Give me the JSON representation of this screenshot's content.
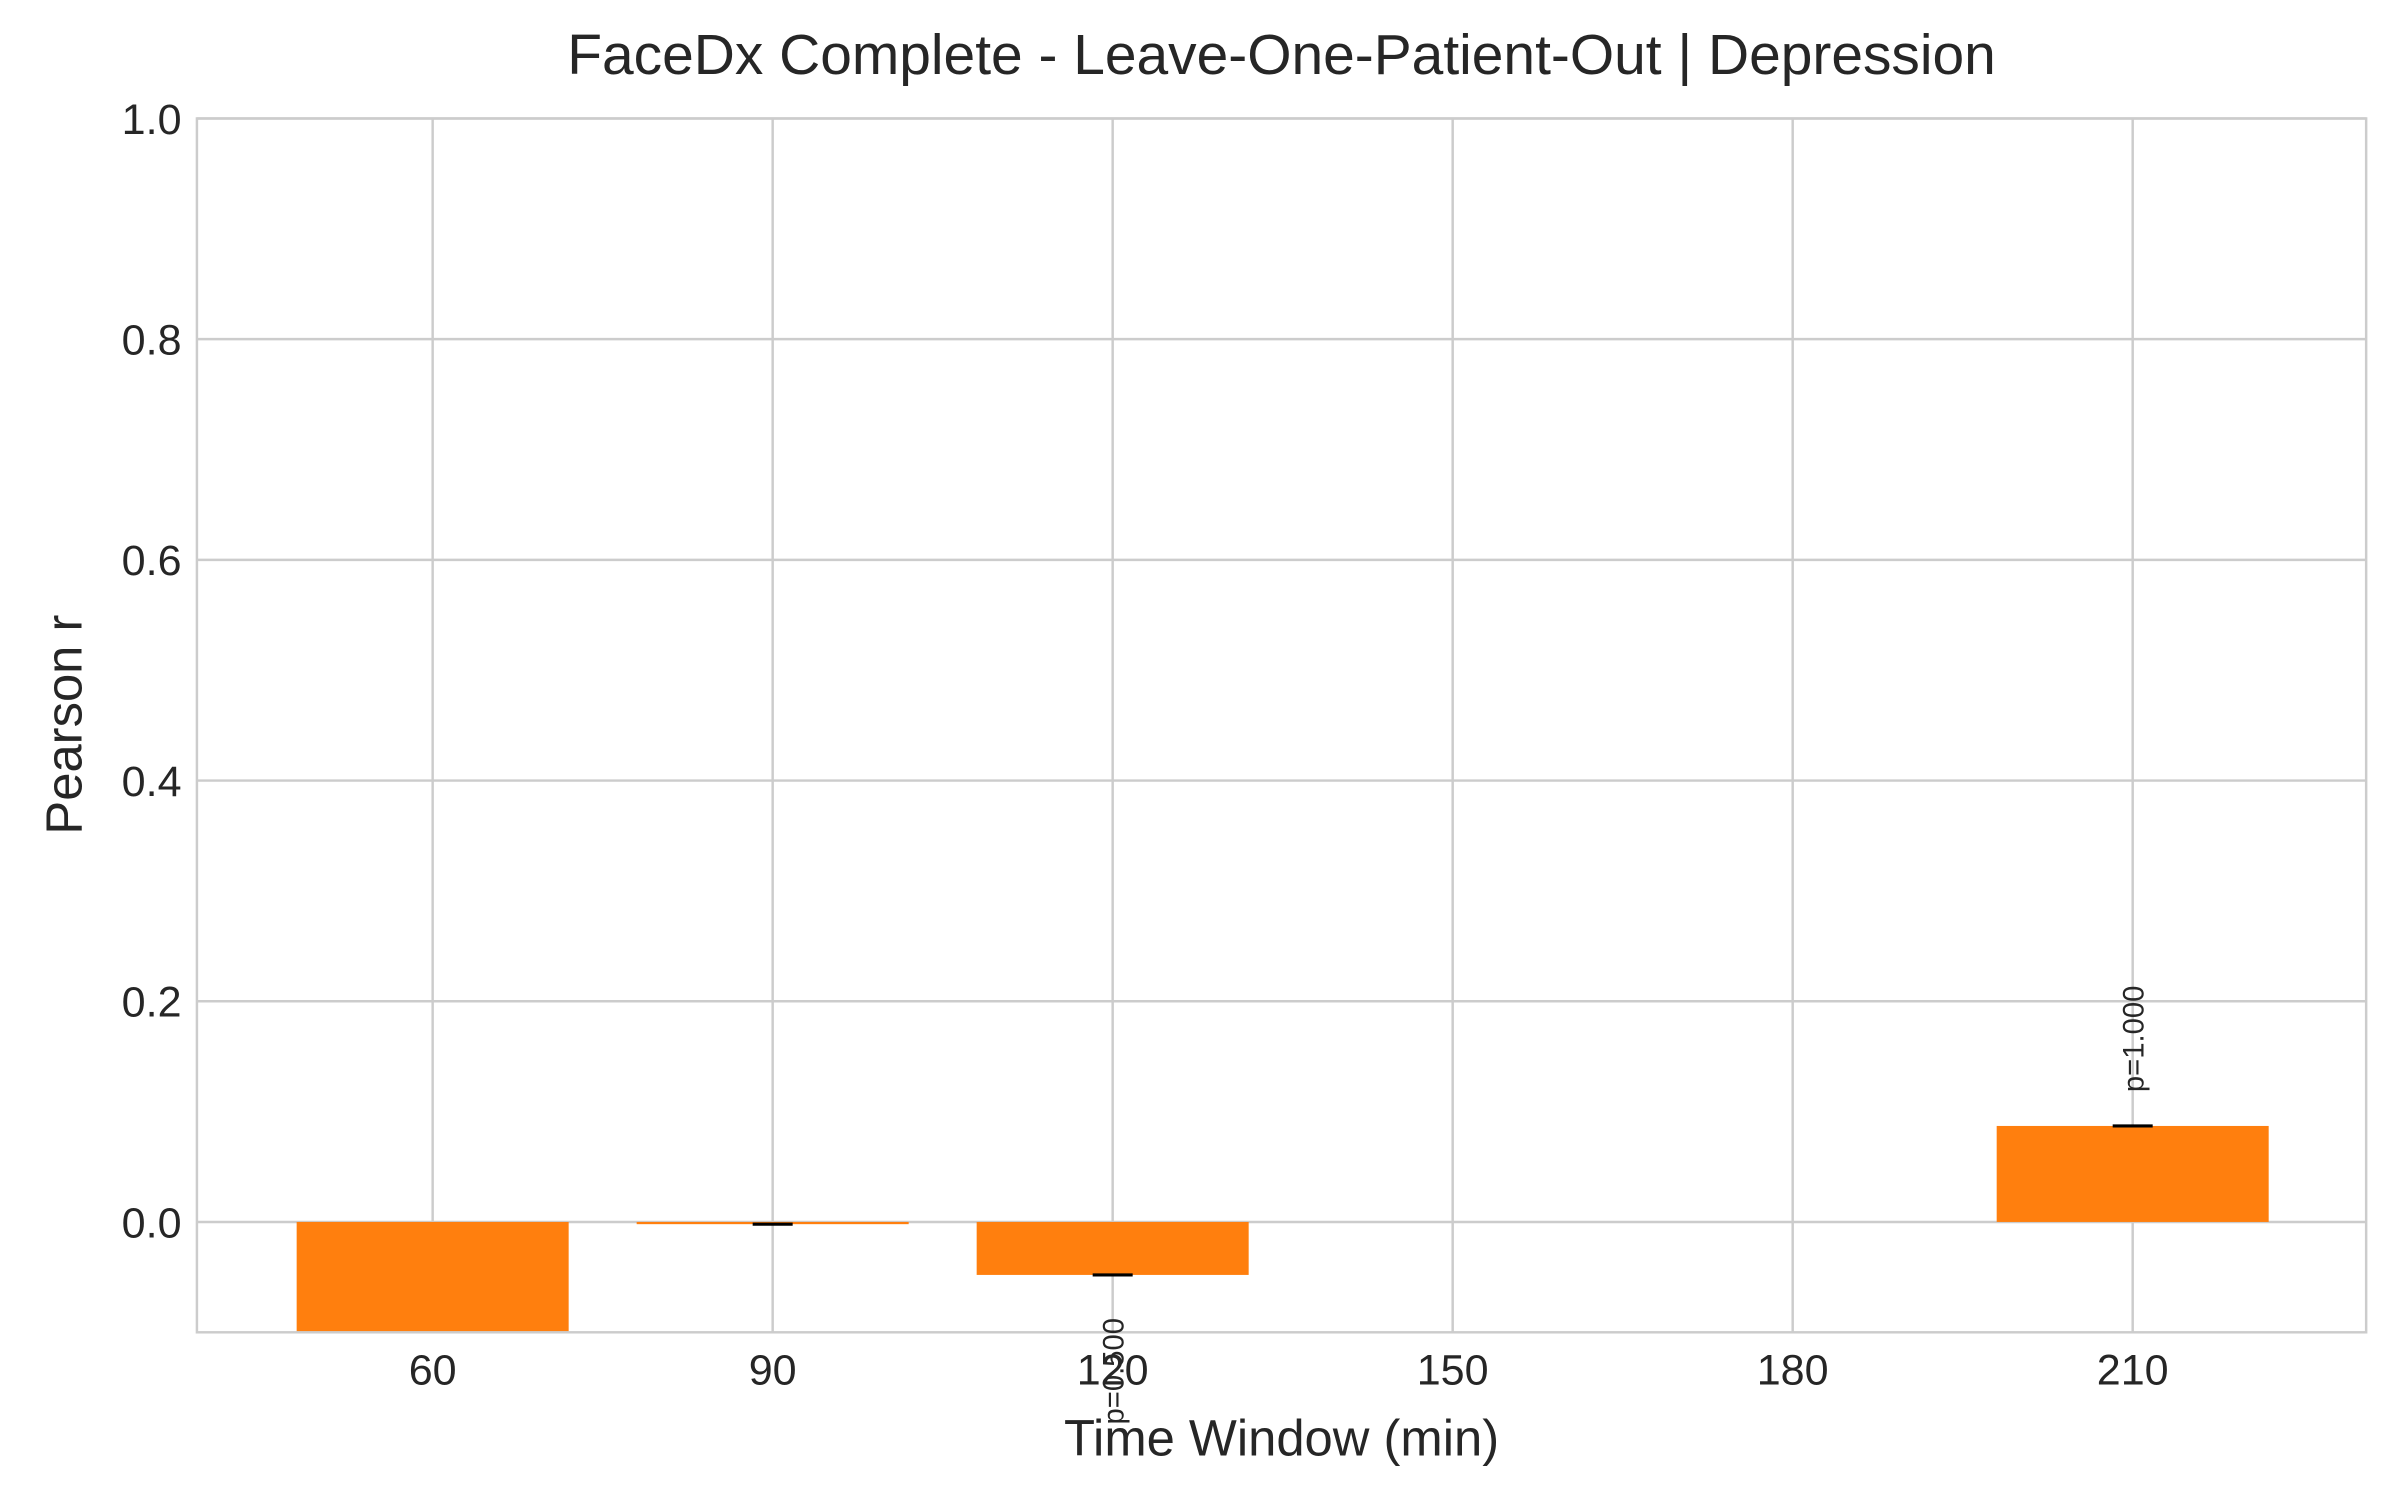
{
  "chart_data": {
    "type": "bar",
    "title": "FaceDx Complete - Leave-One-Patient-Out | Depression",
    "x_label": "Time Window (min)",
    "y_label": "Pearson r",
    "x": [
      60,
      90,
      120,
      150,
      180,
      210
    ],
    "values": [
      -0.12,
      -0.002,
      -0.048,
      null,
      null,
      0.087
    ],
    "value_labels": [
      null,
      null,
      "p=0.500",
      null,
      null,
      "p=1.000"
    ],
    "color": "#ff7f0e",
    "xlim": [
      39.2,
      230.6
    ],
    "xticks": [
      60,
      90,
      120,
      150,
      180,
      210
    ],
    "ylim": [
      -0.1,
      1.0
    ],
    "yticks": [
      {
        "value": 0.0,
        "label": "0.0"
      },
      0.2,
      0.4,
      0.6,
      0.8,
      {
        "value": 1.0,
        "label": "1.0"
      }
    ],
    "grid": true
  }
}
